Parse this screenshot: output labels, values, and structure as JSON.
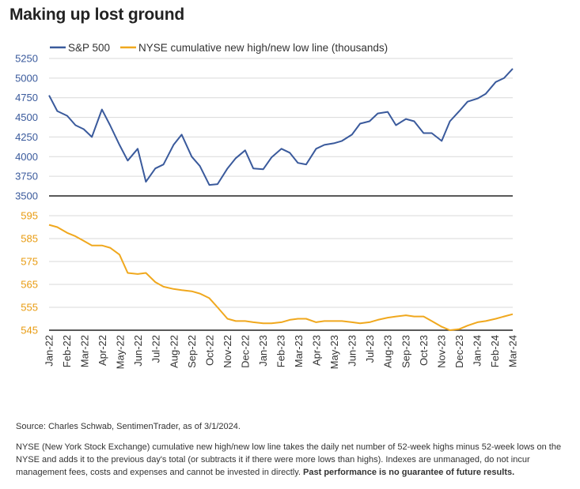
{
  "title": "Making up lost ground",
  "legend": {
    "sp500": "S&P 500",
    "nyse": "NYSE cumulative new high/new low line (thousands)"
  },
  "colors": {
    "sp500": "#3a5a9c",
    "nyse": "#f0a81e",
    "divider": "#222222",
    "grid": "#d9d9d9"
  },
  "source": "Source: Charles Schwab, SentimenTrader, as of 3/1/2024.",
  "disclaimer": "NYSE (New York Stock Exchange) cumulative new high/new low line takes the daily net number of 52-week highs minus 52-week lows on the NYSE and adds it to the previous day's total (or subtracts it if there were more lows than highs). Indexes are unmanaged, do not incur management fees, costs and expenses and cannot be invested in directly.",
  "disclaimer_bold": "Past performance is no guarantee of future results.",
  "chart_data": [
    {
      "type": "line",
      "series": [
        {
          "name": "S&P 500",
          "x": [
            "2022-01-01",
            "2022-01-15",
            "2022-02-01",
            "2022-02-15",
            "2022-03-01",
            "2022-03-15",
            "2022-04-01",
            "2022-04-15",
            "2022-05-01",
            "2022-05-15",
            "2022-06-01",
            "2022-06-15",
            "2022-07-01",
            "2022-07-15",
            "2022-08-01",
            "2022-08-15",
            "2022-09-01",
            "2022-09-15",
            "2022-10-01",
            "2022-10-15",
            "2022-11-01",
            "2022-11-15",
            "2022-12-01",
            "2022-12-15",
            "2023-01-01",
            "2023-01-15",
            "2023-02-01",
            "2023-02-15",
            "2023-03-01",
            "2023-03-15",
            "2023-04-01",
            "2023-04-15",
            "2023-05-01",
            "2023-05-15",
            "2023-06-01",
            "2023-06-15",
            "2023-07-01",
            "2023-07-15",
            "2023-08-01",
            "2023-08-15",
            "2023-09-01",
            "2023-09-15",
            "2023-10-01",
            "2023-10-15",
            "2023-11-01",
            "2023-11-15",
            "2023-12-01",
            "2023-12-15",
            "2024-01-01",
            "2024-01-15",
            "2024-02-01",
            "2024-02-15",
            "2024-03-01"
          ],
          "values": [
            4780,
            4580,
            4520,
            4400,
            4350,
            4250,
            4600,
            4400,
            4150,
            3950,
            4100,
            3680,
            3850,
            3900,
            4150,
            4280,
            4000,
            3880,
            3640,
            3650,
            3850,
            3980,
            4080,
            3850,
            3840,
            3990,
            4100,
            4050,
            3920,
            3900,
            4100,
            4150,
            4170,
            4200,
            4280,
            4420,
            4450,
            4550,
            4570,
            4400,
            4480,
            4450,
            4300,
            4300,
            4200,
            4450,
            4580,
            4700,
            4740,
            4800,
            4950,
            5000,
            5120
          ]
        }
      ],
      "ylim": [
        3500,
        5250
      ],
      "yticks": [
        3500,
        3750,
        4000,
        4250,
        4500,
        4750,
        5000,
        5250
      ]
    },
    {
      "type": "line",
      "series": [
        {
          "name": "NYSE cumulative new high/new low line (thousands)",
          "x": [
            "2022-01-01",
            "2022-01-15",
            "2022-02-01",
            "2022-02-15",
            "2022-03-01",
            "2022-03-15",
            "2022-04-01",
            "2022-04-15",
            "2022-05-01",
            "2022-05-15",
            "2022-06-01",
            "2022-06-15",
            "2022-07-01",
            "2022-07-15",
            "2022-08-01",
            "2022-08-15",
            "2022-09-01",
            "2022-09-15",
            "2022-10-01",
            "2022-10-15",
            "2022-11-01",
            "2022-11-15",
            "2022-12-01",
            "2022-12-15",
            "2023-01-01",
            "2023-01-15",
            "2023-02-01",
            "2023-02-15",
            "2023-03-01",
            "2023-03-15",
            "2023-04-01",
            "2023-04-15",
            "2023-05-01",
            "2023-05-15",
            "2023-06-01",
            "2023-06-15",
            "2023-07-01",
            "2023-07-15",
            "2023-08-01",
            "2023-08-15",
            "2023-09-01",
            "2023-09-15",
            "2023-10-01",
            "2023-10-15",
            "2023-11-01",
            "2023-11-15",
            "2023-12-01",
            "2023-12-15",
            "2024-01-01",
            "2024-01-15",
            "2024-02-01",
            "2024-02-15",
            "2024-03-01"
          ],
          "values": [
            591,
            590,
            587.5,
            586,
            584,
            582,
            582,
            581,
            578,
            570,
            569.5,
            570,
            566,
            564,
            563,
            562.5,
            562,
            561,
            559,
            555,
            550,
            549,
            549,
            548.5,
            548,
            548,
            548.5,
            549.5,
            550,
            550,
            548.5,
            549,
            549,
            549,
            548.5,
            548,
            548.5,
            549.5,
            550.5,
            551,
            551.5,
            551,
            551,
            549,
            546.5,
            545,
            545.5,
            547,
            548.5,
            549,
            550,
            551,
            552
          ]
        }
      ],
      "ylim": [
        545,
        595
      ],
      "yticks": [
        545,
        555,
        565,
        575,
        585,
        595
      ]
    }
  ],
  "x_axis": {
    "labels": [
      "Jan-22",
      "Feb-22",
      "Mar-22",
      "Apr-22",
      "May-22",
      "Jun-22",
      "Jul-22",
      "Aug-22",
      "Sep-22",
      "Oct-22",
      "Nov-22",
      "Dec-22",
      "Jan-23",
      "Feb-23",
      "Mar-23",
      "Apr-23",
      "May-23",
      "Jun-23",
      "Jul-23",
      "Aug-23",
      "Sep-23",
      "Oct-23",
      "Nov-23",
      "Dec-23",
      "Jan-24",
      "Feb-24",
      "Mar-24"
    ]
  }
}
